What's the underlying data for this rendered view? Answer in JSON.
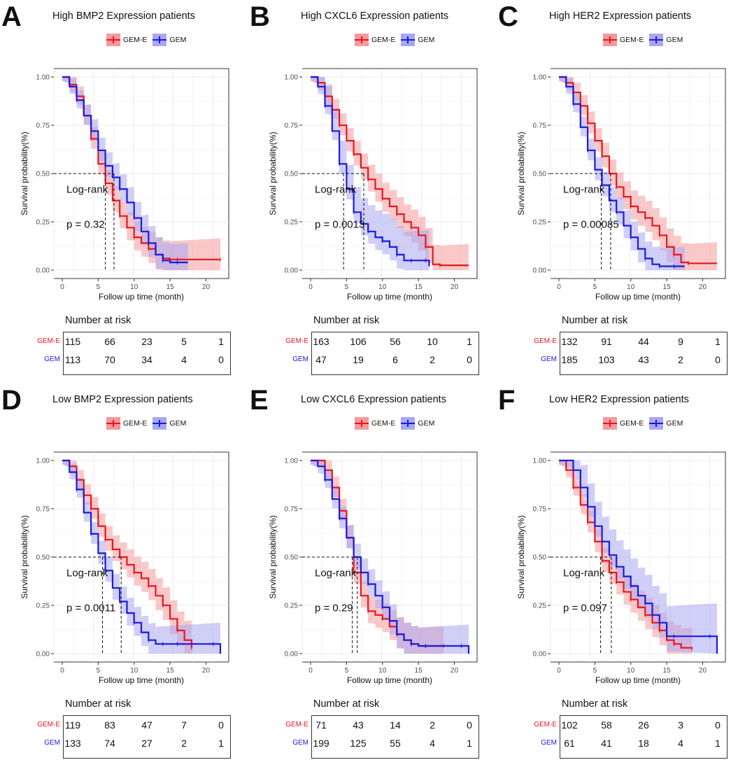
{
  "chart_data": [
    {
      "panel": "A",
      "type": "line",
      "title": "High BMP2 Expression patients",
      "xlabel": "Follow up time (month)",
      "ylabel": "Survival probability(%)",
      "xlim": [
        0,
        22
      ],
      "ylim": [
        0,
        1
      ],
      "xticks": [
        "0",
        "5",
        "10",
        "15",
        "20"
      ],
      "yticks": [
        "0.00",
        "0.25",
        "0.50",
        "0.75",
        "1.00"
      ],
      "log_rank_label": "Log-rank",
      "p_value": "p = 0.32",
      "median_survival": {
        "GEM-E": 6.0,
        "GEM": 7.2
      },
      "risk_title": "Number at risk",
      "series": [
        {
          "name": "GEM-E",
          "color": "#e8161c",
          "band": "#f59a9c",
          "x": [
            0,
            1,
            2,
            3,
            4,
            5,
            6,
            7,
            8,
            9,
            10,
            11,
            12,
            13,
            14,
            15,
            16,
            18,
            22
          ],
          "y": [
            1,
            0.96,
            0.9,
            0.8,
            0.68,
            0.55,
            0.45,
            0.36,
            0.28,
            0.22,
            0.17,
            0.14,
            0.11,
            0.08,
            0.06,
            0.055,
            0.055,
            0.055,
            0.055
          ],
          "risk": [
            "115",
            "66",
            "23",
            "5",
            "1"
          ]
        },
        {
          "name": "GEM",
          "color": "#1a1ae0",
          "band": "#a8a8f0",
          "x": [
            0,
            1,
            2,
            3,
            4,
            5,
            6,
            7,
            8,
            9,
            10,
            11,
            12,
            13,
            14,
            15,
            16,
            17.5
          ],
          "y": [
            1,
            0.95,
            0.88,
            0.8,
            0.72,
            0.62,
            0.54,
            0.48,
            0.42,
            0.35,
            0.27,
            0.2,
            0.14,
            0.08,
            0.05,
            0.04,
            0.04,
            0.04
          ],
          "risk": [
            "113",
            "70",
            "34",
            "4",
            "0"
          ]
        }
      ]
    },
    {
      "panel": "B",
      "type": "line",
      "title": "High CXCL6 Expression patients",
      "xlabel": "Follow up time (month)",
      "ylabel": "Survival probability(%)",
      "xlim": [
        0,
        22
      ],
      "ylim": [
        0,
        1
      ],
      "xticks": [
        "0",
        "5",
        "10",
        "15",
        "20"
      ],
      "yticks": [
        "0.00",
        "0.25",
        "0.50",
        "0.75",
        "1.00"
      ],
      "log_rank_label": "Log-rank",
      "p_value": "p = 0.0013",
      "median_survival": {
        "GEM-E": 7.4,
        "GEM": 4.6
      },
      "risk_title": "Number at risk",
      "series": [
        {
          "name": "GEM-E",
          "color": "#e8161c",
          "band": "#f59a9c",
          "x": [
            0,
            1,
            2,
            3,
            4,
            5,
            6,
            7,
            8,
            9,
            10,
            11,
            12,
            13,
            14,
            15,
            16,
            17,
            18,
            22
          ],
          "y": [
            1,
            0.97,
            0.9,
            0.83,
            0.75,
            0.67,
            0.6,
            0.53,
            0.47,
            0.42,
            0.37,
            0.33,
            0.29,
            0.25,
            0.22,
            0.18,
            0.12,
            0.03,
            0.025,
            0.025
          ],
          "risk": [
            "163",
            "106",
            "56",
            "10",
            "1"
          ]
        },
        {
          "name": "GEM",
          "color": "#1a1ae0",
          "band": "#a8a8f0",
          "x": [
            0,
            1,
            2,
            3,
            4,
            5,
            6,
            7,
            8,
            9,
            10,
            11,
            12,
            13,
            14,
            15,
            16,
            16.5
          ],
          "y": [
            1,
            0.95,
            0.85,
            0.72,
            0.55,
            0.42,
            0.3,
            0.24,
            0.2,
            0.17,
            0.15,
            0.12,
            0.08,
            0.05,
            0.05,
            0.05,
            0.05,
            0.02
          ],
          "risk": [
            "47",
            "19",
            "6",
            "2",
            "0"
          ]
        }
      ]
    },
    {
      "panel": "C",
      "type": "line",
      "title": "High HER2 Expression patients",
      "xlabel": "Follow up time (month)",
      "ylabel": "Survival probability(%)",
      "xlim": [
        0,
        22
      ],
      "ylim": [
        0,
        1
      ],
      "xticks": [
        "0",
        "5",
        "10",
        "15",
        "20"
      ],
      "yticks": [
        "0.00",
        "0.25",
        "0.50",
        "0.75",
        "1.00"
      ],
      "log_rank_label": "Log-rank",
      "p_value": "p = 0.00085",
      "median_survival": {
        "GEM-E": 7.2,
        "GEM": 5.9
      },
      "risk_title": "Number at risk",
      "series": [
        {
          "name": "GEM-E",
          "color": "#e8161c",
          "band": "#f59a9c",
          "x": [
            0,
            1,
            2,
            3,
            4,
            5,
            6,
            7,
            8,
            9,
            10,
            11,
            12,
            13,
            14,
            15,
            16,
            17,
            18,
            22
          ],
          "y": [
            1,
            0.97,
            0.92,
            0.85,
            0.76,
            0.67,
            0.59,
            0.5,
            0.43,
            0.38,
            0.33,
            0.3,
            0.27,
            0.23,
            0.18,
            0.12,
            0.08,
            0.04,
            0.035,
            0.035
          ],
          "risk": [
            "132",
            "91",
            "44",
            "9",
            "1"
          ]
        },
        {
          "name": "GEM",
          "color": "#1a1ae0",
          "band": "#a8a8f0",
          "x": [
            0,
            1,
            2,
            3,
            4,
            5,
            6,
            7,
            8,
            9,
            10,
            11,
            12,
            13,
            14,
            15,
            16,
            17.5
          ],
          "y": [
            1,
            0.95,
            0.86,
            0.74,
            0.62,
            0.52,
            0.44,
            0.36,
            0.3,
            0.23,
            0.17,
            0.11,
            0.06,
            0.03,
            0.02,
            0.02,
            0.02,
            0.02
          ],
          "risk": [
            "185",
            "103",
            "43",
            "2",
            "0"
          ]
        }
      ]
    },
    {
      "panel": "D",
      "type": "line",
      "title": "Low BMP2 Expression patients",
      "xlabel": "Follow up time (month)",
      "ylabel": "Survival probability(%)",
      "xlim": [
        0,
        22
      ],
      "ylim": [
        0,
        1
      ],
      "xticks": [
        "0",
        "5",
        "10",
        "15",
        "20"
      ],
      "yticks": [
        "0.00",
        "0.25",
        "0.50",
        "0.75",
        "1.00"
      ],
      "log_rank_label": "Log-rank",
      "p_value": "p = 0.0011",
      "median_survival": {
        "GEM-E": 8.2,
        "GEM": 5.6
      },
      "risk_title": "Number at risk",
      "series": [
        {
          "name": "GEM-E",
          "color": "#e8161c",
          "band": "#f59a9c",
          "x": [
            0,
            1,
            2,
            3,
            4,
            5,
            6,
            7,
            8,
            9,
            10,
            11,
            12,
            13,
            14,
            15,
            16,
            17,
            18
          ],
          "y": [
            1,
            0.97,
            0.9,
            0.82,
            0.75,
            0.66,
            0.59,
            0.54,
            0.5,
            0.46,
            0.42,
            0.39,
            0.35,
            0.3,
            0.25,
            0.18,
            0.12,
            0.07,
            0.03
          ],
          "risk": [
            "119",
            "83",
            "47",
            "7",
            "0"
          ]
        },
        {
          "name": "GEM",
          "color": "#1a1ae0",
          "band": "#a8a8f0",
          "x": [
            0,
            1,
            2,
            3,
            4,
            5,
            6,
            7,
            8,
            9,
            10,
            11,
            12,
            13,
            14,
            15,
            16,
            18,
            21,
            22
          ],
          "y": [
            1,
            0.94,
            0.85,
            0.73,
            0.62,
            0.52,
            0.43,
            0.34,
            0.27,
            0.21,
            0.16,
            0.11,
            0.07,
            0.05,
            0.05,
            0.05,
            0.05,
            0.05,
            0.05,
            0
          ],
          "risk": [
            "133",
            "74",
            "27",
            "2",
            "1"
          ]
        }
      ]
    },
    {
      "panel": "E",
      "type": "line",
      "title": "Low CXCL6 Expression patients",
      "xlabel": "Follow up time (month)",
      "ylabel": "Survival probability(%)",
      "xlim": [
        0,
        22
      ],
      "ylim": [
        0,
        1
      ],
      "xticks": [
        "0",
        "5",
        "10",
        "15",
        "20"
      ],
      "yticks": [
        "0.00",
        "0.25",
        "0.50",
        "0.75",
        "1.00"
      ],
      "log_rank_label": "Log-rank",
      "p_value": "p = 0.29",
      "median_survival": {
        "GEM-E": 5.8,
        "GEM": 6.5
      },
      "risk_title": "Number at risk",
      "series": [
        {
          "name": "GEM-E",
          "color": "#e8161c",
          "band": "#f59a9c",
          "x": [
            0,
            1,
            2,
            3,
            4,
            5,
            6,
            7,
            8,
            9,
            10,
            11,
            12,
            13,
            14,
            15,
            16,
            17,
            18.5
          ],
          "y": [
            1,
            1,
            0.95,
            0.86,
            0.74,
            0.6,
            0.42,
            0.3,
            0.22,
            0.2,
            0.18,
            0.14,
            0.1,
            0.07,
            0.05,
            0.04,
            0.04,
            0.04,
            0.04
          ],
          "risk": [
            "71",
            "43",
            "14",
            "2",
            "0"
          ]
        },
        {
          "name": "GEM",
          "color": "#1a1ae0",
          "band": "#a8a8f0",
          "x": [
            0,
            1,
            2,
            3,
            4,
            5,
            6,
            7,
            8,
            9,
            10,
            11,
            12,
            13,
            14,
            15,
            16,
            18,
            21,
            22
          ],
          "y": [
            1,
            0.97,
            0.9,
            0.8,
            0.7,
            0.6,
            0.5,
            0.42,
            0.36,
            0.3,
            0.24,
            0.17,
            0.1,
            0.07,
            0.05,
            0.04,
            0.04,
            0.04,
            0.04,
            0
          ],
          "risk": [
            "199",
            "125",
            "55",
            "4",
            "1"
          ]
        }
      ]
    },
    {
      "panel": "F",
      "type": "line",
      "title": "Low HER2 Expression patients",
      "xlabel": "Follow up time (month)",
      "ylabel": "Survival probability(%)",
      "xlim": [
        0,
        22
      ],
      "ylim": [
        0,
        1
      ],
      "xticks": [
        "0",
        "5",
        "10",
        "15",
        "20"
      ],
      "yticks": [
        "0.00",
        "0.25",
        "0.50",
        "0.75",
        "1.00"
      ],
      "log_rank_label": "Log-rank",
      "p_value": "p = 0.097",
      "median_survival": {
        "GEM-E": 5.8,
        "GEM": 7.3
      },
      "risk_title": "Number at risk",
      "series": [
        {
          "name": "GEM-E",
          "color": "#e8161c",
          "band": "#f59a9c",
          "x": [
            0,
            1,
            2,
            3,
            4,
            5,
            6,
            7,
            8,
            9,
            10,
            11,
            12,
            13,
            14,
            15,
            16,
            17,
            18.5
          ],
          "y": [
            1,
            0.95,
            0.86,
            0.77,
            0.68,
            0.58,
            0.48,
            0.42,
            0.37,
            0.32,
            0.28,
            0.24,
            0.2,
            0.16,
            0.12,
            0.07,
            0.05,
            0.03,
            0.025
          ],
          "risk": [
            "102",
            "58",
            "26",
            "3",
            "0"
          ]
        },
        {
          "name": "GEM",
          "color": "#1a1ae0",
          "band": "#a8a8f0",
          "x": [
            0,
            1,
            2,
            3,
            4,
            5,
            6,
            7,
            8,
            9,
            10,
            11,
            12,
            13,
            14,
            15,
            16,
            18,
            21,
            22
          ],
          "y": [
            1,
            1,
            0.95,
            0.86,
            0.76,
            0.66,
            0.58,
            0.51,
            0.45,
            0.4,
            0.35,
            0.3,
            0.26,
            0.2,
            0.16,
            0.09,
            0.09,
            0.09,
            0.09,
            0
          ],
          "risk": [
            "61",
            "41",
            "18",
            "4",
            "1"
          ]
        }
      ]
    }
  ]
}
